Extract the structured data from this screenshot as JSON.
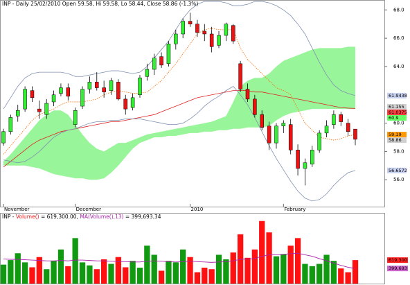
{
  "chart_data": {
    "type": "candlestick",
    "title": "INP - Daily 25/02/2010 Open 59.58, Hi 59.58, Lo 58.44, Close 58.86 (-1.3%)",
    "categories": [
      "November",
      null,
      null,
      null,
      null,
      null,
      null,
      null,
      null,
      null,
      "December",
      null,
      null,
      null,
      null,
      null,
      null,
      null,
      null,
      null,
      null,
      null,
      null,
      null,
      null,
      null,
      "2010",
      null,
      null,
      null,
      null,
      null,
      null,
      null,
      null,
      null,
      null,
      null,
      null,
      "February",
      null,
      null,
      null,
      null,
      null,
      null,
      null,
      null,
      null,
      null
    ],
    "candles": [
      [
        58.6,
        59.6,
        58.4,
        59.4
      ],
      [
        59.4,
        60.6,
        59.2,
        60.4
      ],
      [
        60.5,
        61.3,
        60.1,
        60.9
      ],
      [
        61.0,
        62.6,
        60.8,
        62.4
      ],
      [
        62.3,
        62.6,
        61.5,
        61.8
      ],
      [
        61.0,
        61.6,
        60.3,
        60.8
      ],
      [
        60.6,
        61.7,
        60.3,
        61.4
      ],
      [
        61.5,
        62.3,
        61.2,
        62.0
      ],
      [
        62.1,
        62.8,
        61.9,
        62.5
      ],
      [
        62.5,
        62.8,
        61.6,
        61.9
      ],
      [
        59.9,
        61.1,
        59.7,
        60.9
      ],
      [
        61.2,
        62.6,
        61.0,
        62.4
      ],
      [
        62.4,
        63.3,
        62.1,
        62.9
      ],
      [
        62.9,
        63.6,
        62.3,
        62.5
      ],
      [
        62.5,
        63.0,
        61.8,
        62.2
      ],
      [
        62.3,
        63.2,
        62.0,
        63.0
      ],
      [
        62.9,
        63.1,
        61.6,
        61.7
      ],
      [
        61.7,
        62.0,
        60.6,
        61.0
      ],
      [
        61.1,
        62.1,
        60.9,
        61.8
      ],
      [
        62.0,
        63.4,
        61.8,
        63.2
      ],
      [
        63.3,
        64.2,
        63.0,
        63.8
      ],
      [
        63.8,
        64.9,
        63.4,
        64.6
      ],
      [
        64.7,
        65.0,
        63.9,
        64.1
      ],
      [
        64.2,
        65.8,
        64.0,
        65.6
      ],
      [
        65.6,
        66.6,
        65.2,
        66.3
      ],
      [
        66.3,
        67.4,
        66.0,
        67.2
      ],
      [
        67.2,
        67.8,
        66.8,
        67.0
      ],
      [
        67.0,
        67.3,
        66.1,
        66.4
      ],
      [
        66.5,
        67.0,
        65.8,
        66.3
      ],
      [
        66.3,
        66.8,
        65.0,
        65.4
      ],
      [
        65.5,
        66.5,
        65.3,
        66.2
      ],
      [
        66.2,
        67.1,
        65.8,
        67.0
      ],
      [
        66.9,
        67.0,
        65.6,
        65.8
      ],
      [
        64.2,
        64.4,
        62.2,
        62.4
      ],
      [
        62.4,
        62.8,
        61.5,
        61.7
      ],
      [
        61.7,
        62.0,
        60.4,
        60.6
      ],
      [
        60.6,
        60.9,
        59.5,
        59.7
      ],
      [
        59.8,
        60.1,
        58.1,
        58.6
      ],
      [
        58.6,
        60.0,
        58.2,
        59.8
      ],
      [
        59.8,
        60.2,
        59.3,
        60.0
      ],
      [
        59.9,
        60.3,
        57.8,
        58.1
      ],
      [
        58.1,
        58.5,
        56.3,
        56.8
      ],
      [
        56.8,
        57.5,
        55.6,
        57.2
      ],
      [
        57.1,
        58.4,
        56.9,
        58.1
      ],
      [
        58.1,
        59.5,
        57.9,
        59.3
      ],
      [
        59.3,
        60.2,
        59.0,
        59.8
      ],
      [
        59.9,
        60.9,
        59.6,
        60.6
      ],
      [
        60.6,
        60.8,
        59.8,
        60.1
      ],
      [
        60.0,
        60.3,
        59.1,
        59.4
      ],
      [
        59.58,
        59.58,
        58.44,
        58.86
      ]
    ],
    "up_color": "#33ee33",
    "down_color": "#ee1111",
    "cloud": {
      "color": "#99f599",
      "top": [
        57.3,
        57.8,
        58.4,
        59.0,
        59.6,
        60.2,
        60.6,
        60.9,
        60.9,
        60.6,
        59.9,
        59.2,
        58.6,
        58.2,
        58.0,
        58.3,
        58.6,
        58.6,
        58.8,
        59.0,
        59.2,
        59.3,
        59.4,
        59.5,
        59.6,
        59.7,
        59.8,
        59.9,
        60.0,
        60.1,
        60.3,
        60.5,
        61.5,
        62.6,
        63.0,
        63.2,
        63.2,
        63.5,
        64.0,
        64.4,
        64.6,
        64.8,
        65.0,
        65.2,
        65.3,
        65.3,
        65.3,
        65.3,
        65.4,
        65.4
      ],
      "bottom": [
        57.0,
        57.0,
        57.0,
        57.0,
        56.9,
        56.8,
        56.6,
        56.4,
        56.3,
        56.2,
        56.1,
        56.1,
        56.0,
        56.0,
        56.1,
        56.5,
        57.0,
        57.6,
        58.2,
        58.6,
        58.8,
        59.0,
        59.0,
        59.1,
        59.1,
        59.2,
        59.3,
        59.3,
        59.4,
        59.4,
        59.5,
        59.5,
        59.6,
        59.6,
        59.7,
        59.7,
        59.7,
        59.8,
        60.2,
        60.5,
        60.7,
        60.8,
        60.9,
        61.0,
        61.0,
        61.0,
        61.0,
        61.0,
        61.0,
        61.0
      ]
    },
    "lines": [
      {
        "color": "#e02020",
        "dash": false,
        "values": [
          56.9,
          57.3,
          57.7,
          58.1,
          58.5,
          58.8,
          59.0,
          59.2,
          59.4,
          59.5,
          59.6,
          59.7,
          59.8,
          59.9,
          60.0,
          60.1,
          60.1,
          60.2,
          60.3,
          60.4,
          60.5,
          60.6,
          60.8,
          61.0,
          61.2,
          61.4,
          61.6,
          61.8,
          61.9,
          62.0,
          62.1,
          62.2,
          62.3,
          62.3,
          62.3,
          62.2,
          62.2,
          62.1,
          62.0,
          61.9,
          61.8,
          61.7,
          61.6,
          61.5,
          61.4,
          61.3,
          61.2,
          61.1,
          61.06,
          61.0375
        ]
      },
      {
        "color": "#ff6a00",
        "dash": true,
        "values": [
          57.8,
          58.4,
          59.0,
          59.6,
          60.2,
          60.6,
          60.8,
          61.0,
          61.3,
          61.5,
          61.5,
          61.5,
          61.6,
          61.7,
          62.0,
          62.2,
          62.3,
          62.2,
          62.1,
          62.1,
          62.2,
          62.6,
          63.0,
          63.6,
          64.2,
          64.9,
          65.6,
          66.3,
          66.6,
          66.7,
          66.6,
          66.6,
          66.6,
          65.3,
          64.5,
          64.0,
          63.5,
          63.0,
          62.5,
          62.3,
          62.0,
          61.0,
          60.0,
          59.5,
          59.0,
          58.9,
          58.8,
          58.9,
          59.1,
          59.19
        ]
      },
      {
        "color": "#8090b0",
        "dash": false,
        "values": [
          61.0,
          61.8,
          62.6,
          63.2,
          63.5,
          63.6,
          63.6,
          63.6,
          63.6,
          63.5,
          63.3,
          63.3,
          63.4,
          63.5,
          63.6,
          63.7,
          63.7,
          63.6,
          63.5,
          63.6,
          64.0,
          64.6,
          65.2,
          65.8,
          66.6,
          67.4,
          68.0,
          68.4,
          68.6,
          68.6,
          68.6,
          68.5,
          68.3,
          68.3,
          68.4,
          68.6,
          68.6,
          68.5,
          68.3,
          68.0,
          67.6,
          67.0,
          66.3,
          65.3,
          64.3,
          63.4,
          62.7,
          62.3,
          62.1,
          61.9438
        ]
      },
      {
        "color": "#8090b0",
        "dash": false,
        "values": [
          57.4,
          57.3,
          57.2,
          57.3,
          57.6,
          58.0,
          58.5,
          59.0,
          59.3,
          59.5,
          59.6,
          59.8,
          60.0,
          60.1,
          60.1,
          60.2,
          60.2,
          60.3,
          60.3,
          60.3,
          60.2,
          60.1,
          60.0,
          59.9,
          59.9,
          60.0,
          60.3,
          60.7,
          61.2,
          61.6,
          61.9,
          62.3,
          62.6,
          62.0,
          61.3,
          60.4,
          59.4,
          58.4,
          57.5,
          56.7,
          55.9,
          55.2,
          54.7,
          54.5,
          54.6,
          55.0,
          55.6,
          56.1,
          56.5,
          56.6572
        ]
      }
    ],
    "price_tags": [
      {
        "value": 61.9438,
        "color": "#c8d0f0"
      },
      {
        "value": 61.155,
        "color": "#d0d0d0"
      },
      {
        "value": 61.0375,
        "color": "#ff4040"
      },
      {
        "value": 60.9,
        "color": "#66ff66"
      },
      {
        "value": 59.19,
        "color": "#ff9900"
      },
      {
        "value": 58.86,
        "color": "#d0d0d0"
      },
      {
        "value": 56.6572,
        "color": "#c8d0f0"
      }
    ],
    "ylim": [
      54.1,
      68.7
    ],
    "yticks": [
      {
        "value": 56,
        "label": "56.0"
      },
      {
        "value": 58,
        "label": "58.0"
      },
      {
        "value": 60,
        "label": "60.0"
      },
      {
        "value": 64,
        "label": "64.0"
      },
      {
        "value": 66,
        "label": "66.0"
      },
      {
        "value": 68,
        "label": "68.0"
      }
    ],
    "volume": {
      "title_parts": [
        "INP - ",
        "Volume()",
        " = 619,300.00, ",
        "MA(Volume(),13)",
        " = 399,693.34"
      ],
      "up_color": "#119911",
      "down_color": "#ff1111",
      "ma_color": "#aa22aa",
      "values": [
        500000,
        620000,
        800000,
        560000,
        430000,
        700000,
        380000,
        600000,
        900000,
        460000,
        1200000,
        560000,
        480000,
        380000,
        640000,
        520000,
        700000,
        430000,
        600000,
        420000,
        1000000,
        760000,
        340000,
        600000,
        560000,
        900000,
        700000,
        300000,
        420000,
        380000,
        760000,
        640000,
        820000,
        1300000,
        680000,
        900000,
        1650000,
        1350000,
        720000,
        780000,
        1000000,
        1200000,
        520000,
        460000,
        520000,
        760000,
        600000,
        400000,
        300000,
        619300
      ],
      "ma": [
        650000,
        640000,
        640000,
        630000,
        620000,
        610000,
        600000,
        600000,
        610000,
        600000,
        620000,
        620000,
        610000,
        600000,
        600000,
        590000,
        580000,
        580000,
        570000,
        570000,
        590000,
        600000,
        590000,
        580000,
        570000,
        580000,
        590000,
        580000,
        570000,
        560000,
        570000,
        580000,
        600000,
        640000,
        650000,
        660000,
        720000,
        760000,
        760000,
        770000,
        790000,
        800000,
        760000,
        720000,
        660000,
        600000,
        540000,
        480000,
        430000,
        399693.34
      ],
      "tags": [
        {
          "value": 619300,
          "label": "619,300",
          "color": "#ff2020"
        },
        {
          "value": 399693,
          "label": "399,693",
          "color": "#cc66cc"
        }
      ],
      "ylim": [
        0,
        1700000
      ]
    }
  }
}
